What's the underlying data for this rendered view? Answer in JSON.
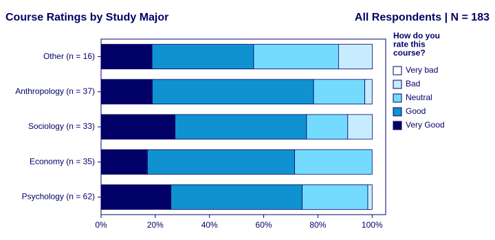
{
  "chart_data": {
    "type": "stacked_bar_horizontal",
    "title": "Course Ratings by Study Major",
    "subtitle": "All Respondents | N = 183",
    "legend_title": [
      "How do you",
      "rate this",
      "course?"
    ],
    "legend": "right",
    "categories": [
      "Other (n = 16)",
      "Anthropology (n = 37)",
      "Sociology (n = 33)",
      "Economy (n = 35)",
      "Psychology (n = 62)"
    ],
    "series": [
      {
        "name": "Very Good",
        "color": "#000066",
        "values": [
          18.8,
          18.9,
          27.3,
          17.1,
          25.8
        ]
      },
      {
        "name": "Good",
        "color": "#1192d0",
        "values": [
          37.5,
          59.5,
          48.5,
          54.3,
          48.4
        ]
      },
      {
        "name": "Neutral",
        "color": "#74dbff",
        "values": [
          31.3,
          18.9,
          15.2,
          28.6,
          24.2
        ]
      },
      {
        "name": "Bad",
        "color": "#c8ecff",
        "values": [
          12.5,
          2.7,
          9.1,
          0,
          1.6
        ]
      },
      {
        "name": "Very bad",
        "color": "#ffffff",
        "values": [
          0,
          0,
          0,
          0,
          0
        ]
      }
    ],
    "xlim": [
      0,
      105
    ],
    "xticks": [
      {
        "value": 0,
        "label": "0%"
      },
      {
        "value": 20,
        "label": "20%"
      },
      {
        "value": 40,
        "label": "40%"
      },
      {
        "value": 60,
        "label": "60%"
      },
      {
        "value": 80,
        "label": "80%"
      },
      {
        "value": 100,
        "label": "100%"
      }
    ]
  }
}
